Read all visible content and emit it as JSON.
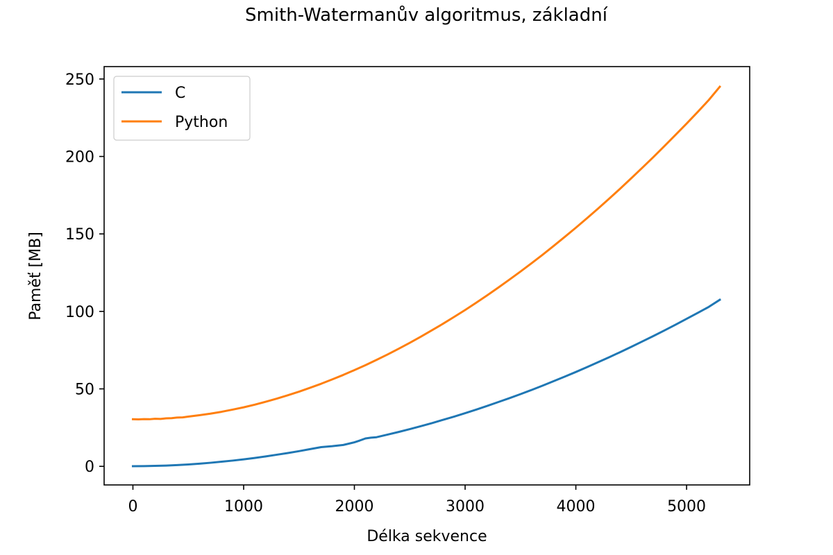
{
  "chart_data": {
    "type": "line",
    "title": "Smith-Watermanův algoritmus, základní",
    "xlabel": "Délka sekvence",
    "ylabel": "Paměť [MB]",
    "xlim": [
      -260,
      5570
    ],
    "ylim": [
      -12,
      258
    ],
    "xticks": [
      0,
      1000,
      2000,
      3000,
      4000,
      5000
    ],
    "yticks": [
      0,
      50,
      100,
      150,
      200,
      250
    ],
    "grid": false,
    "legend_position": "upper-left",
    "series": [
      {
        "name": "C",
        "color": "#1f77b4",
        "x": [
          0,
          100,
          200,
          300,
          400,
          500,
          600,
          700,
          800,
          900,
          1000,
          1100,
          1200,
          1300,
          1400,
          1500,
          1600,
          1700,
          1800,
          1900,
          2000,
          2050,
          2100,
          2150,
          2200,
          2300,
          2400,
          2500,
          2600,
          2700,
          2800,
          2900,
          3000,
          3100,
          3200,
          3300,
          3400,
          3500,
          3600,
          3700,
          3800,
          3900,
          4000,
          4100,
          4200,
          4300,
          4400,
          4500,
          4600,
          4700,
          4800,
          4900,
          5000,
          5100,
          5200,
          5300
        ],
        "y": [
          0.1,
          0.15,
          0.3,
          0.5,
          0.8,
          1.2,
          1.7,
          2.3,
          3.0,
          3.7,
          4.5,
          5.4,
          6.4,
          7.5,
          8.6,
          9.8,
          11.1,
          12.4,
          13.0,
          13.8,
          15.5,
          16.7,
          18.0,
          18.5,
          18.8,
          20.5,
          22.2,
          24.0,
          25.9,
          27.9,
          30.0,
          32.1,
          34.3,
          36.6,
          39.0,
          41.5,
          44.0,
          46.6,
          49.3,
          52.1,
          55.0,
          57.9,
          60.9,
          64.0,
          67.2,
          70.4,
          73.7,
          77.1,
          80.6,
          84.1,
          87.7,
          91.4,
          95.2,
          99.0,
          102.9,
          107.5
        ]
      },
      {
        "name": "Python",
        "color": "#ff7f0e",
        "x": [
          0,
          50,
          100,
          150,
          200,
          250,
          300,
          350,
          400,
          450,
          500,
          600,
          700,
          800,
          900,
          1000,
          1100,
          1200,
          1300,
          1400,
          1500,
          1600,
          1700,
          1800,
          1900,
          2000,
          2100,
          2200,
          2300,
          2400,
          2500,
          2600,
          2700,
          2800,
          2900,
          3000,
          3100,
          3200,
          3300,
          3400,
          3500,
          3600,
          3700,
          3800,
          3900,
          4000,
          4100,
          4200,
          4300,
          4400,
          4500,
          4600,
          4700,
          4800,
          4900,
          5000,
          5100,
          5200,
          5300
        ],
        "y": [
          30.4,
          30.3,
          30.5,
          30.4,
          30.7,
          30.6,
          31.0,
          31.1,
          31.5,
          31.6,
          32.1,
          33.0,
          34.0,
          35.2,
          36.6,
          38.1,
          39.8,
          41.7,
          43.7,
          45.9,
          48.2,
          50.7,
          53.3,
          56.1,
          59.0,
          62.1,
          65.3,
          68.7,
          72.2,
          75.9,
          79.7,
          83.7,
          87.8,
          92.0,
          96.4,
          100.9,
          105.6,
          110.4,
          115.4,
          120.5,
          125.7,
          131.1,
          136.6,
          142.3,
          148.1,
          154.0,
          160.1,
          166.3,
          172.7,
          179.2,
          185.9,
          192.7,
          199.6,
          206.7,
          213.9,
          221.2,
          228.7,
          236.4,
          245.0
        ]
      }
    ]
  }
}
